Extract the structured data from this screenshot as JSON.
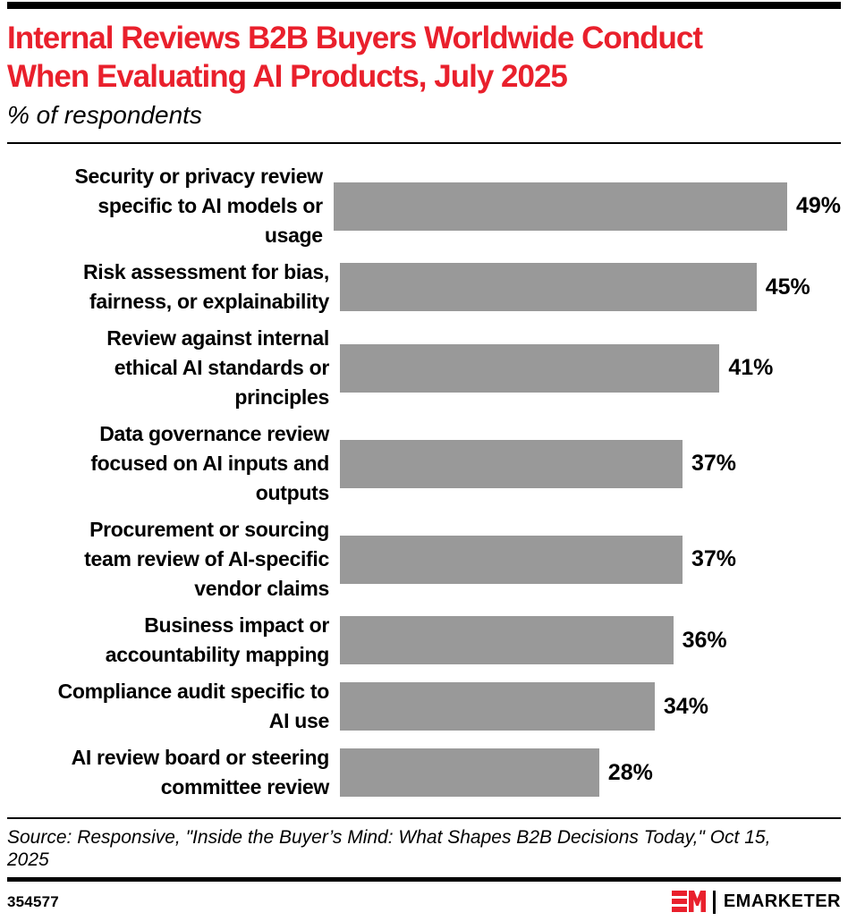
{
  "header": {
    "title": "Internal Reviews B2B Buyers Worldwide Conduct\nWhen Evaluating AI Products, July 2025",
    "subtitle": "% of respondents"
  },
  "chart_data": {
    "type": "bar",
    "orientation": "horizontal",
    "title": "Internal Reviews B2B Buyers Worldwide Conduct When Evaluating AI Products, July 2025",
    "axis_note": "% of respondents",
    "categories": [
      "Security or privacy review specific to AI models or usage",
      "Risk assessment for bias, fairness, or explainability",
      "Review against internal ethical AI standards or principles",
      "Data governance review focused on AI inputs and outputs",
      "Procurement or sourcing team review of AI-specific vendor claims",
      "Business impact or accountability mapping",
      "Compliance audit specific to AI use",
      "AI review board or steering committee review"
    ],
    "values": [
      49,
      45,
      41,
      37,
      37,
      36,
      34,
      28
    ],
    "data_labels": [
      "49%",
      "45%",
      "41%",
      "37%",
      "37%",
      "36%",
      "34%",
      "28%"
    ],
    "value_unit": "%",
    "xlim": [
      0,
      54
    ],
    "grid": false,
    "legend": false,
    "bar_color": "#999999"
  },
  "rows": [
    {
      "label": "Security or privacy review\nspecific to AI models or\nusage",
      "value": "49%"
    },
    {
      "label": "Risk assessment for bias,\nfairness, or explainability",
      "value": "45%"
    },
    {
      "label": "Review against internal\nethical AI standards or\nprinciples",
      "value": "41%"
    },
    {
      "label": "Data governance review\nfocused on AI inputs and\noutputs",
      "value": "37%"
    },
    {
      "label": "Procurement or sourcing\nteam review of AI-specific\nvendor claims",
      "value": "37%"
    },
    {
      "label": "Business impact or\naccountability mapping",
      "value": "36%"
    },
    {
      "label": "Compliance audit specific to\nAI use",
      "value": "34%"
    },
    {
      "label": "AI review board or steering\ncommittee review",
      "value": "28%"
    }
  ],
  "footer": {
    "source": "Source: Responsive, \"Inside the Buyer’s Mind: What Shapes B2B Decisions Today,\" Oct 15, 2025",
    "chart_id": "354577",
    "brand": "EMARKETER"
  },
  "colors": {
    "accent_red": "#E9202C",
    "bar_gray": "#999999",
    "text_black": "#000000"
  }
}
